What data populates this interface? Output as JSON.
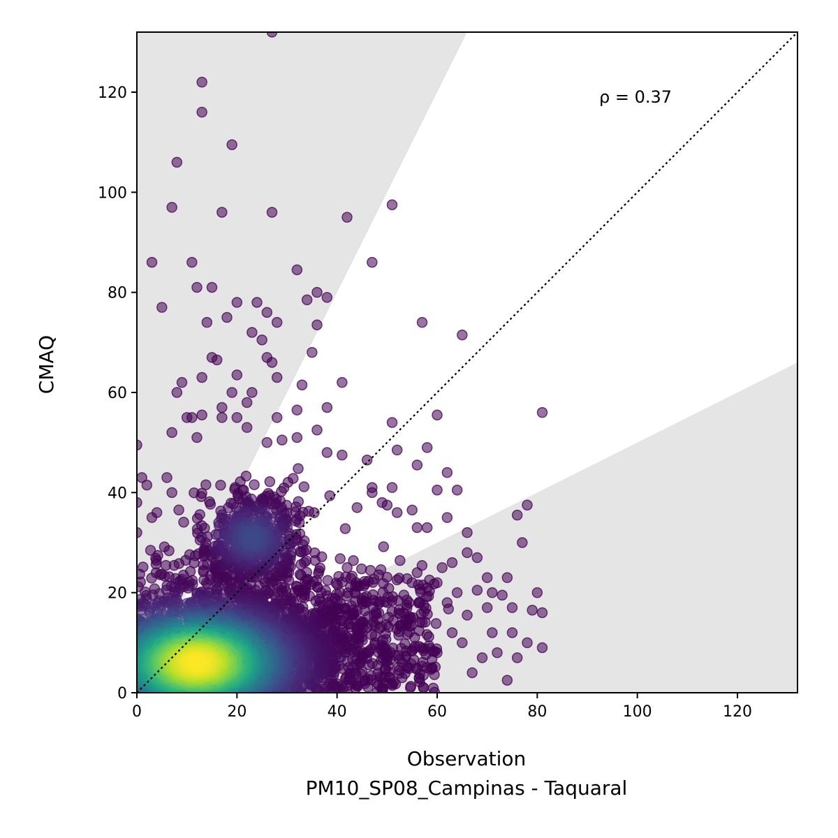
{
  "chart_data": {
    "type": "scatter",
    "xlabel": "Observation",
    "station_label": "PM10_SP08_Campinas - Taquaral",
    "ylabel": "CMAQ",
    "xlim": [
      0,
      132
    ],
    "ylim": [
      0,
      132
    ],
    "x_ticks": [
      "0",
      "20",
      "40",
      "60",
      "80",
      "100",
      "120"
    ],
    "y_ticks": [
      "0",
      "20",
      "40",
      "60",
      "80",
      "100",
      "120"
    ],
    "annotation": "ρ = 0.37",
    "colormap": "viridis",
    "band_color": "#e5e5e5",
    "reference_line": {
      "style": "dotted",
      "color": "#000000",
      "slope": 1
    },
    "factor_of_2_band": {
      "upper_slope": 2,
      "lower_slope": 0.5
    },
    "density_center": {
      "x": 12,
      "y": 6
    },
    "outliers": [
      [
        27,
        132
      ],
      [
        13,
        122
      ],
      [
        13,
        116
      ],
      [
        19,
        109.5
      ],
      [
        8,
        106
      ],
      [
        7,
        97
      ],
      [
        17,
        96
      ],
      [
        27,
        96
      ],
      [
        42,
        95
      ],
      [
        51,
        97.5
      ],
      [
        3,
        86
      ],
      [
        11,
        86
      ],
      [
        47,
        86
      ],
      [
        32,
        84.5
      ],
      [
        12,
        81
      ],
      [
        15,
        81
      ],
      [
        5,
        77
      ],
      [
        14,
        74
      ],
      [
        18,
        75
      ],
      [
        20,
        78
      ],
      [
        24,
        78
      ],
      [
        26,
        76
      ],
      [
        23,
        72
      ],
      [
        25,
        70.5
      ],
      [
        28,
        74
      ],
      [
        34,
        78.5
      ],
      [
        36,
        80
      ],
      [
        38,
        79
      ],
      [
        36,
        73.5
      ],
      [
        15,
        67
      ],
      [
        16,
        66.5
      ],
      [
        26,
        67
      ],
      [
        27,
        66
      ],
      [
        28,
        63
      ],
      [
        20,
        63.5
      ],
      [
        19,
        60
      ],
      [
        22,
        58
      ],
      [
        23,
        60
      ],
      [
        9,
        62
      ],
      [
        8,
        60
      ],
      [
        13,
        63
      ],
      [
        33,
        61.5
      ],
      [
        35,
        68
      ],
      [
        41,
        62
      ],
      [
        32,
        56.5
      ],
      [
        38,
        57
      ],
      [
        28,
        55
      ],
      [
        10,
        55
      ],
      [
        11,
        55
      ],
      [
        13,
        55.5
      ],
      [
        17,
        55
      ],
      [
        17,
        57
      ],
      [
        20,
        55
      ],
      [
        7,
        52
      ],
      [
        12,
        51
      ],
      [
        22,
        53
      ],
      [
        36,
        52.5
      ],
      [
        32,
        51
      ],
      [
        29,
        50.5
      ],
      [
        26,
        50
      ],
      [
        38,
        48
      ],
      [
        41,
        47.5
      ],
      [
        46,
        46.5
      ],
      [
        51,
        54
      ],
      [
        52,
        48.5
      ],
      [
        57,
        74
      ],
      [
        65,
        71.5
      ],
      [
        60,
        55.5
      ],
      [
        58,
        49
      ],
      [
        81,
        56
      ],
      [
        0,
        49.5
      ],
      [
        56,
        45.5
      ],
      [
        62,
        44
      ],
      [
        60,
        40.5
      ],
      [
        64,
        40.5
      ],
      [
        62,
        35
      ],
      [
        49,
        38
      ],
      [
        50,
        37.5
      ],
      [
        51,
        41
      ],
      [
        47,
        41
      ],
      [
        44,
        37
      ],
      [
        52,
        36
      ],
      [
        55,
        36.5
      ],
      [
        58,
        33
      ],
      [
        56,
        33
      ],
      [
        47,
        40
      ],
      [
        1,
        43
      ],
      [
        2,
        41.5
      ],
      [
        0,
        38
      ],
      [
        6,
        43
      ],
      [
        7,
        40
      ],
      [
        4,
        36
      ],
      [
        3,
        35
      ],
      [
        0,
        32
      ],
      [
        66,
        32
      ],
      [
        66,
        28
      ],
      [
        68,
        27
      ],
      [
        68,
        20.5
      ],
      [
        70,
        23
      ],
      [
        71,
        20
      ],
      [
        74,
        23
      ],
      [
        73,
        19.5
      ],
      [
        75,
        17
      ],
      [
        78,
        37.5
      ],
      [
        76,
        35.5
      ],
      [
        77,
        30
      ],
      [
        80,
        20
      ],
      [
        79,
        16.5
      ],
      [
        81,
        16
      ],
      [
        75,
        12
      ],
      [
        78,
        10
      ],
      [
        81,
        9
      ],
      [
        76,
        7
      ],
      [
        74,
        2.5
      ],
      [
        69,
        7
      ],
      [
        67,
        4
      ],
      [
        72,
        8
      ],
      [
        65,
        10
      ],
      [
        63,
        12
      ],
      [
        66,
        15.5
      ],
      [
        70,
        17
      ],
      [
        71,
        12
      ],
      [
        59,
        5
      ],
      [
        60,
        8
      ],
      [
        54,
        5
      ],
      [
        53,
        3
      ],
      [
        61,
        25
      ],
      [
        60,
        22
      ],
      [
        63,
        26
      ],
      [
        64,
        20
      ],
      [
        62,
        18
      ],
      [
        57,
        14
      ],
      [
        56,
        24
      ],
      [
        55,
        22
      ]
    ]
  }
}
